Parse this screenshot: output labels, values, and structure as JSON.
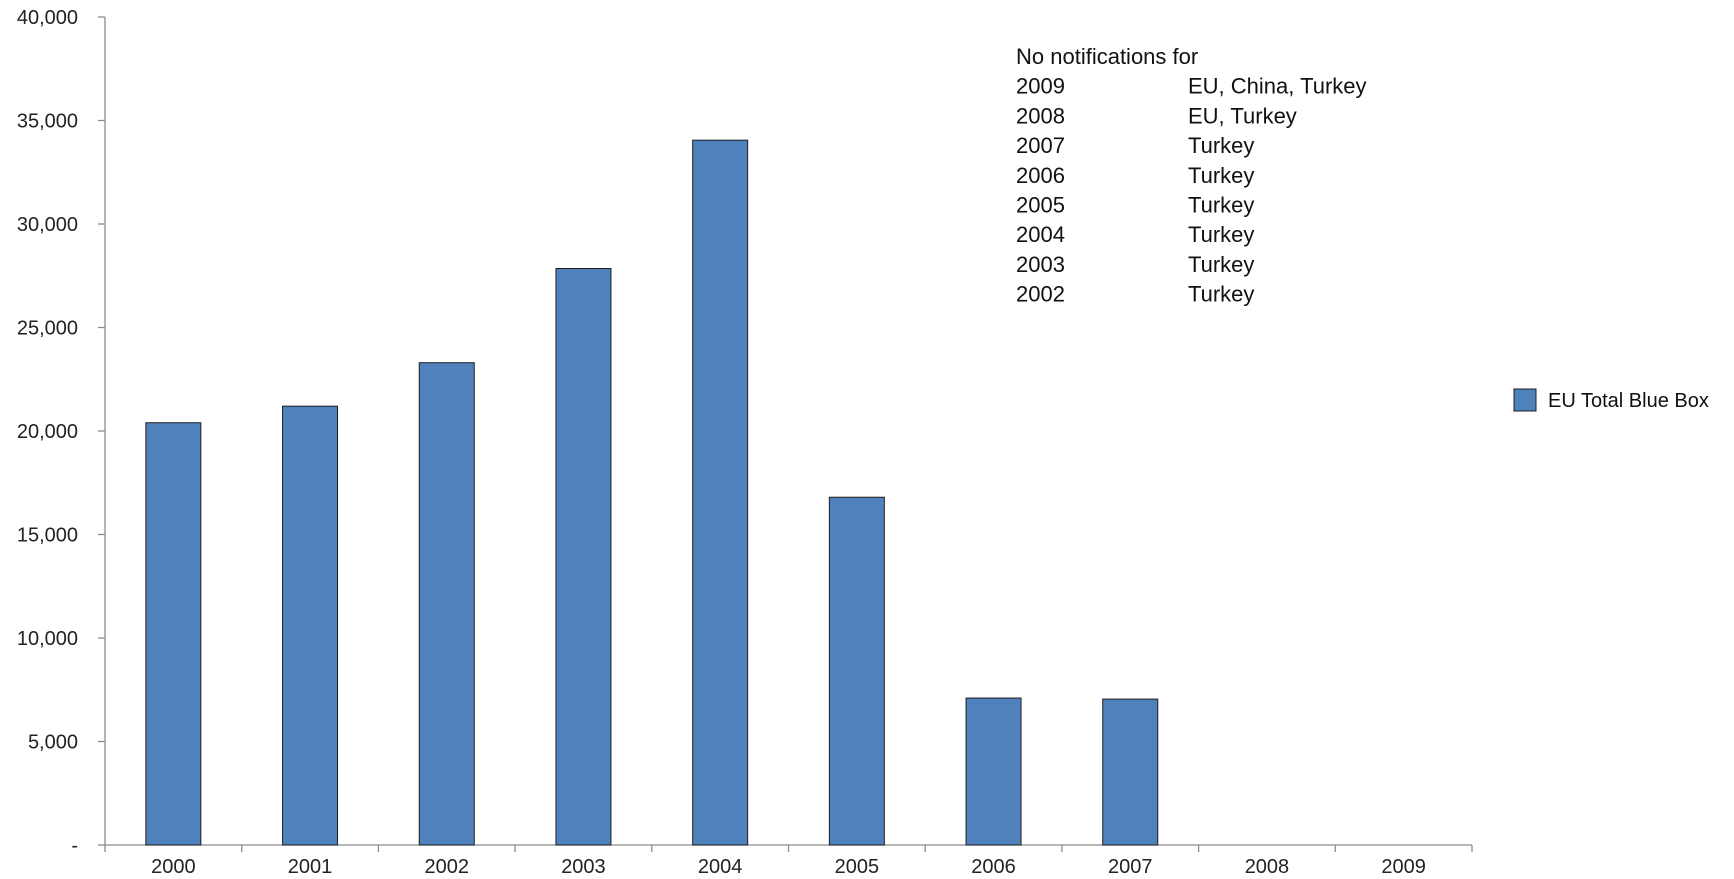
{
  "chart_data": {
    "type": "bar",
    "categories": [
      "2000",
      "2001",
      "2002",
      "2003",
      "2004",
      "2005",
      "2006",
      "2007",
      "2008",
      "2009"
    ],
    "series": [
      {
        "name": "EU Total Blue Box",
        "values": [
          20400,
          21200,
          23300,
          27850,
          34050,
          16800,
          7100,
          7050,
          0,
          0
        ],
        "color": "#4f81bd"
      }
    ],
    "ylim": [
      0,
      40000
    ],
    "yticks": [
      0,
      5000,
      10000,
      15000,
      20000,
      25000,
      30000,
      35000,
      40000
    ],
    "ytick_labels": [
      "-",
      "5,000",
      "10,000",
      "15,000",
      "20,000",
      "25,000",
      "30,000",
      "35,000",
      "40,000"
    ],
    "title": "",
    "xlabel": "",
    "ylabel": "",
    "grid": false,
    "legend_position": "right",
    "annotation": {
      "heading": "No notifications for",
      "rows": [
        {
          "year": "2009",
          "parties": "EU, China, Turkey"
        },
        {
          "year": "2008",
          "parties": "EU, Turkey"
        },
        {
          "year": "2007",
          "parties": "Turkey"
        },
        {
          "year": "2006",
          "parties": "Turkey"
        },
        {
          "year": "2005",
          "parties": "Turkey"
        },
        {
          "year": "2004",
          "parties": "Turkey"
        },
        {
          "year": "2003",
          "parties": "Turkey"
        },
        {
          "year": "2002",
          "parties": "Turkey"
        }
      ]
    }
  }
}
